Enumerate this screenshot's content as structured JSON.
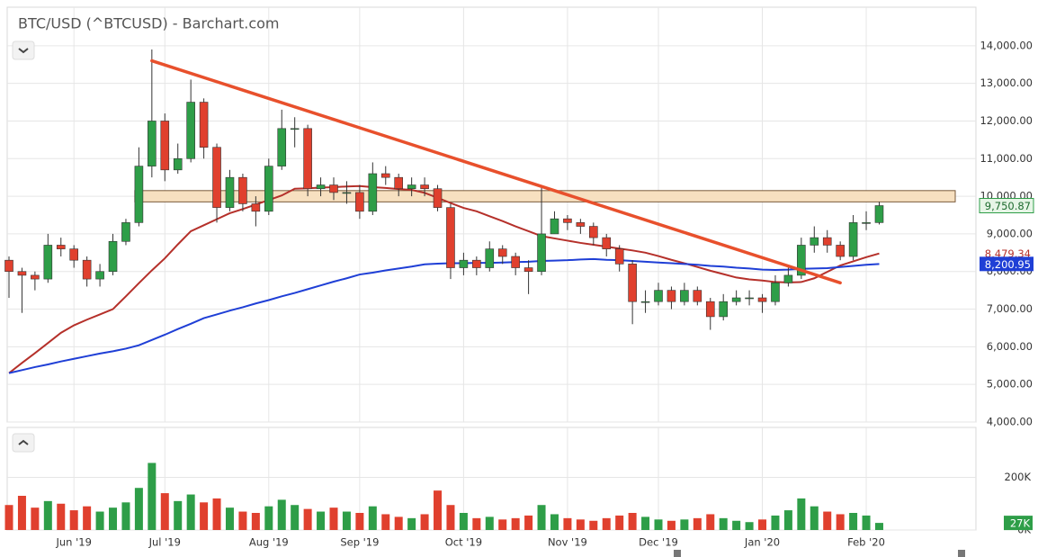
{
  "chart_data": {
    "type": "candlestick",
    "title": "BTC/USD (^BTCUSD) - Barchart.com",
    "categories": [
      null,
      null,
      null,
      null,
      null,
      "Jun '19",
      null,
      null,
      null,
      null,
      null,
      null,
      "Jul '19",
      null,
      null,
      null,
      null,
      null,
      null,
      null,
      "Aug '19",
      null,
      null,
      null,
      null,
      null,
      null,
      "Sep '19",
      null,
      null,
      null,
      null,
      null,
      null,
      null,
      "Oct '19",
      null,
      null,
      null,
      null,
      null,
      null,
      null,
      "Nov '19",
      null,
      null,
      null,
      null,
      null,
      null,
      "Dec '19",
      null,
      null,
      null,
      null,
      null,
      null,
      null,
      "Jan '20",
      null,
      null,
      null,
      null,
      null,
      null,
      null,
      "Feb '20",
      null
    ],
    "open": [
      8300,
      8000,
      7900,
      7800,
      8700,
      8600,
      8300,
      7800,
      8000,
      8800,
      9300,
      10800,
      12000,
      10700,
      11000,
      12500,
      11300,
      9700,
      10500,
      9800,
      9600,
      10800,
      11800,
      11800,
      10200,
      10300,
      10100,
      10100,
      9600,
      10600,
      10500,
      10200,
      10300,
      10200,
      9700,
      8100,
      8300,
      8100,
      8600,
      8400,
      8100,
      8000,
      9000,
      9400,
      9300,
      9200,
      8900,
      8600,
      8200,
      7200,
      7200,
      7500,
      7200,
      7500,
      7200,
      6800,
      7200,
      7300,
      7300,
      7200,
      7700,
      7900,
      8700,
      8900,
      8700,
      8400,
      9300,
      9300
    ],
    "high": [
      8400,
      8100,
      8000,
      9000,
      8900,
      8700,
      8400,
      8200,
      9000,
      9400,
      11300,
      13900,
      12200,
      11400,
      13100,
      12600,
      11400,
      10700,
      10600,
      10000,
      11000,
      12300,
      12100,
      11900,
      10500,
      10500,
      10400,
      10300,
      10900,
      10800,
      10600,
      10500,
      10500,
      10300,
      9800,
      8500,
      8400,
      8800,
      8700,
      8500,
      8300,
      10300,
      9600,
      9500,
      9400,
      9300,
      9000,
      8700,
      8300,
      7500,
      7700,
      7600,
      7700,
      7600,
      7300,
      7400,
      7500,
      7500,
      7400,
      7900,
      8100,
      8900,
      9200,
      9100,
      8800,
      9500,
      9600,
      9850
    ],
    "low": [
      7300,
      6900,
      7500,
      7700,
      8400,
      8100,
      7600,
      7600,
      7900,
      8700,
      9200,
      10500,
      10400,
      10600,
      10900,
      11000,
      9300,
      9600,
      9600,
      9200,
      9500,
      10700,
      11300,
      10000,
      10000,
      9900,
      9800,
      9400,
      9500,
      10300,
      10000,
      10000,
      10000,
      9600,
      7800,
      7900,
      7900,
      8000,
      8200,
      7900,
      7400,
      7900,
      9000,
      9100,
      9000,
      8700,
      8400,
      8000,
      6600,
      6900,
      7100,
      7000,
      7100,
      7100,
      6450,
      6700,
      7100,
      7100,
      6900,
      7100,
      7600,
      7800,
      8500,
      8500,
      8300,
      8300,
      9100,
      9250
    ],
    "close": [
      8000,
      7900,
      7800,
      8700,
      8600,
      8300,
      7800,
      8000,
      8800,
      9300,
      10800,
      12000,
      10700,
      11000,
      12500,
      11300,
      9700,
      10500,
      9800,
      9600,
      10800,
      11800,
      11800,
      10200,
      10300,
      10100,
      10100,
      9600,
      10600,
      10500,
      10200,
      10300,
      10200,
      9700,
      8100,
      8300,
      8100,
      8600,
      8400,
      8100,
      8000,
      9000,
      9400,
      9300,
      9200,
      8900,
      8600,
      8200,
      7200,
      7200,
      7500,
      7200,
      7500,
      7200,
      6800,
      7200,
      7300,
      7300,
      7200,
      7700,
      7900,
      8700,
      8900,
      8700,
      8400,
      9300,
      9300,
      9750.87
    ],
    "last_label": "9,750.87",
    "up_color": "#2e9e48",
    "down_color": "#e0402e",
    "ylim": [
      4000,
      15000
    ],
    "yticks": [
      {
        "value": 4000,
        "label": "4,000.00"
      },
      {
        "value": 5000,
        "label": "5,000.00"
      },
      {
        "value": 6000,
        "label": "6,000.00"
      },
      {
        "value": 7000,
        "label": "7,000.00"
      },
      {
        "value": 8000,
        "label": "8,000.00"
      },
      {
        "value": 9000,
        "label": "9,000.00"
      },
      {
        "value": 10000,
        "label": "10,000.00"
      },
      {
        "value": 11000,
        "label": "11,000.00"
      },
      {
        "value": 12000,
        "label": "12,000.00"
      },
      {
        "value": 13000,
        "label": "13,000.00"
      },
      {
        "value": 14000,
        "label": "14,000.00"
      }
    ],
    "grid": true,
    "overlays": [
      {
        "color": "#b5302a",
        "last_label": "8,479.34",
        "values": [
          5300,
          5570,
          5830,
          6100,
          6370,
          6570,
          6720,
          6860,
          7000,
          7340,
          7690,
          8030,
          8350,
          8720,
          9070,
          9230,
          9390,
          9550,
          9660,
          9780,
          9900,
          10020,
          10200,
          10210,
          10230,
          10240,
          10260,
          10270,
          10240,
          10220,
          10190,
          10170,
          10090,
          9960,
          9820,
          9690,
          9600,
          9470,
          9340,
          9200,
          9070,
          8940,
          8880,
          8820,
          8760,
          8710,
          8660,
          8610,
          8560,
          8500,
          8410,
          8310,
          8220,
          8120,
          8020,
          7930,
          7840,
          7790,
          7760,
          7720,
          7710,
          7720,
          7820,
          7990,
          8160,
          8270,
          8380,
          8479.34
        ]
      },
      {
        "color": "#1f3fd6",
        "last_label": "8,200.95",
        "values": [
          5300,
          5380,
          5460,
          5530,
          5610,
          5680,
          5750,
          5820,
          5880,
          5950,
          6040,
          6180,
          6320,
          6470,
          6610,
          6760,
          6860,
          6960,
          7050,
          7150,
          7240,
          7340,
          7430,
          7530,
          7630,
          7730,
          7820,
          7920,
          7970,
          8030,
          8080,
          8130,
          8190,
          8210,
          8220,
          8220,
          8230,
          8230,
          8240,
          8250,
          8260,
          8280,
          8290,
          8300,
          8320,
          8330,
          8310,
          8300,
          8280,
          8260,
          8240,
          8220,
          8200,
          8180,
          8150,
          8130,
          8100,
          8080,
          8050,
          8040,
          8050,
          8070,
          8080,
          8090,
          8120,
          8150,
          8180,
          8200.95
        ]
      }
    ],
    "trend_line": {
      "color": "#e8502c",
      "at": [
        11,
        64
      ],
      "values": [
        13600,
        7700
      ]
    },
    "resistance_zone": {
      "low": 9850,
      "high": 10150,
      "color": "#f7e0c0"
    },
    "volume": {
      "values": [
        95000,
        130000,
        85000,
        110000,
        100000,
        75000,
        90000,
        70000,
        85000,
        105000,
        160000,
        255000,
        140000,
        110000,
        135000,
        105000,
        120000,
        85000,
        70000,
        65000,
        90000,
        115000,
        95000,
        80000,
        70000,
        85000,
        70000,
        65000,
        90000,
        60000,
        50000,
        45000,
        60000,
        150000,
        95000,
        65000,
        45000,
        50000,
        40000,
        45000,
        55000,
        95000,
        60000,
        45000,
        40000,
        35000,
        45000,
        55000,
        65000,
        50000,
        40000,
        35000,
        40000,
        45000,
        60000,
        45000,
        35000,
        30000,
        40000,
        55000,
        75000,
        120000,
        90000,
        70000,
        60000,
        65000,
        55000,
        27000
      ],
      "value_label": "27K",
      "ylim": [
        0,
        390000
      ],
      "yticks": [
        {
          "value": 0,
          "label": "0K"
        },
        {
          "value": 200000,
          "label": "200K"
        }
      ]
    }
  }
}
